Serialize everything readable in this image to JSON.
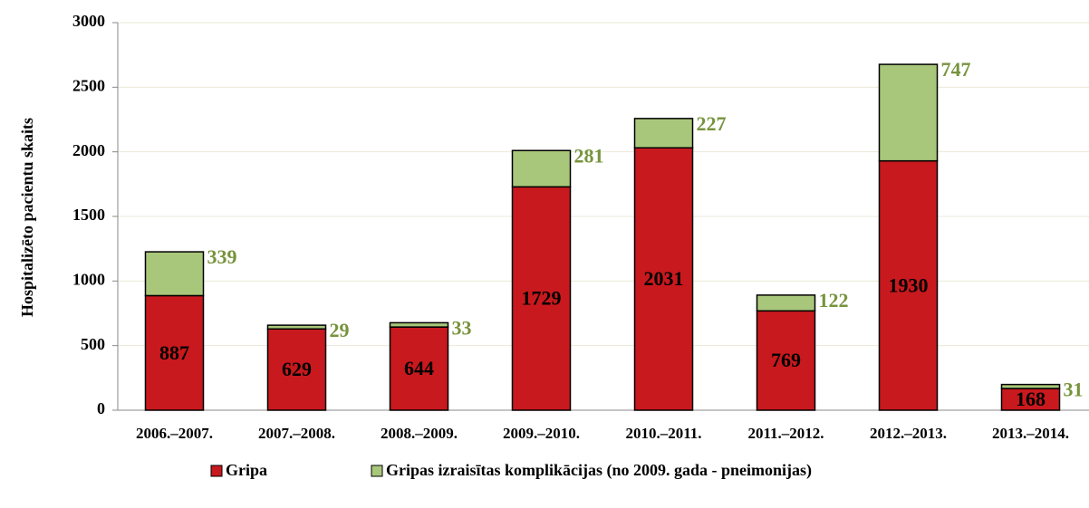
{
  "chart_data": {
    "type": "stacked_bar",
    "ylabel": "Hospitalizēto pacientu skaits",
    "categories": [
      "2006.–2007.",
      "2007.–2008.",
      "2008.–2009.",
      "2009.–2010.",
      "2010.–2011.",
      "2011.–2012.",
      "2012.–2013.",
      "2013.–2014."
    ],
    "series": [
      {
        "name": "Gripa",
        "color": "#c8191e",
        "label_color": "#000000",
        "values": [
          887,
          629,
          644,
          1729,
          2031,
          769,
          1930,
          168
        ]
      },
      {
        "name": "Gripas izraisītas komplikācijas (no 2009. gada - pneimonijas)",
        "color": "#a9c77a",
        "label_color": "#77933c",
        "values": [
          339,
          29,
          33,
          281,
          227,
          122,
          747,
          31
        ]
      }
    ],
    "ylim": [
      0,
      3000
    ],
    "yticks": [
      0,
      500,
      1000,
      1500,
      2000,
      2500,
      3000
    ],
    "grid": true,
    "legend": "bottom"
  }
}
